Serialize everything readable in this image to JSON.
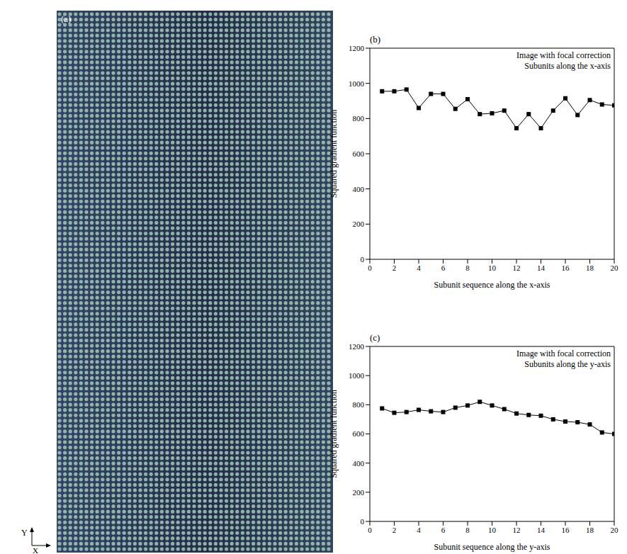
{
  "image": {
    "label": "(a)",
    "axis_labels": {
      "x": "X",
      "y": "Y"
    }
  },
  "chart_data": [
    {
      "type": "line",
      "panel": "(b)",
      "annotations": [
        "Image with focal correction",
        "Subunits along the x-axis"
      ],
      "x_label": "Subunit sequence along the x-axis",
      "y_label": "Squared gradient function",
      "x": [
        1,
        2,
        3,
        4,
        5,
        6,
        7,
        8,
        9,
        10,
        11,
        12,
        13,
        14,
        15,
        16,
        17,
        18,
        19,
        20
      ],
      "values": [
        955,
        955,
        965,
        860,
        940,
        940,
        855,
        910,
        825,
        830,
        845,
        745,
        825,
        745,
        845,
        915,
        820,
        905,
        880,
        875
      ],
      "color": "#000000",
      "marker": "square",
      "xlim": [
        0,
        20
      ],
      "xticks": [
        0,
        2,
        4,
        6,
        8,
        10,
        12,
        14,
        16,
        18,
        20
      ],
      "ylim": [
        0,
        1200
      ],
      "yticks": [
        0,
        200,
        400,
        600,
        800,
        1000,
        1200
      ]
    },
    {
      "type": "line",
      "panel": "(c)",
      "annotations": [
        "Image with focal correction",
        "Subunits along the y-axis"
      ],
      "x_label": "Subunit sequence along the y-axis",
      "y_label": "Squared gradient function",
      "x": [
        1,
        2,
        3,
        4,
        5,
        6,
        7,
        8,
        9,
        10,
        11,
        12,
        13,
        14,
        15,
        16,
        17,
        18,
        19,
        20
      ],
      "values": [
        775,
        745,
        750,
        765,
        755,
        750,
        780,
        795,
        820,
        795,
        770,
        740,
        730,
        725,
        700,
        685,
        680,
        665,
        610,
        600
      ],
      "color": "#000000",
      "marker": "square",
      "xlim": [
        0,
        20
      ],
      "xticks": [
        0,
        2,
        4,
        6,
        8,
        10,
        12,
        14,
        16,
        18,
        20
      ],
      "ylim": [
        0,
        1200
      ],
      "yticks": [
        0,
        200,
        400,
        600,
        800,
        1000,
        1200
      ]
    }
  ]
}
